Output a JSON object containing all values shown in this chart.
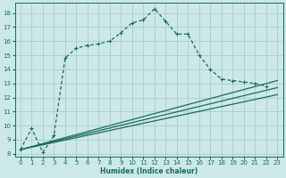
{
  "title": "",
  "xlabel": "Humidex (Indice chaleur)",
  "bg_color": "#cce8e8",
  "grid_color": "#aacccc",
  "line_color": "#1a6b5a",
  "xlim": [
    -0.5,
    23.5
  ],
  "ylim": [
    7.8,
    18.7
  ],
  "xticks": [
    0,
    1,
    2,
    3,
    4,
    5,
    6,
    7,
    8,
    9,
    10,
    11,
    12,
    13,
    14,
    15,
    16,
    17,
    18,
    19,
    20,
    21,
    22,
    23
  ],
  "yticks": [
    8,
    9,
    10,
    11,
    12,
    13,
    14,
    15,
    16,
    17,
    18
  ],
  "series_main": {
    "x": [
      0,
      1,
      2,
      3,
      4,
      5,
      6,
      7,
      8,
      9,
      10,
      11,
      12,
      13,
      14,
      15,
      16,
      17,
      18,
      19,
      20,
      21,
      22
    ],
    "y": [
      8.3,
      9.8,
      8.1,
      9.3,
      14.8,
      15.5,
      15.7,
      15.8,
      16.0,
      16.6,
      17.3,
      17.5,
      18.3,
      17.4,
      16.5,
      16.5,
      15.0,
      14.0,
      13.3,
      13.2,
      13.1,
      13.0,
      12.8
    ]
  },
  "series_line1": {
    "x": [
      0,
      23
    ],
    "y": [
      8.3,
      13.2
    ]
  },
  "series_line2": {
    "x": [
      0,
      23
    ],
    "y": [
      8.3,
      12.7
    ]
  },
  "series_line3": {
    "x": [
      0,
      23
    ],
    "y": [
      8.3,
      12.2
    ]
  }
}
